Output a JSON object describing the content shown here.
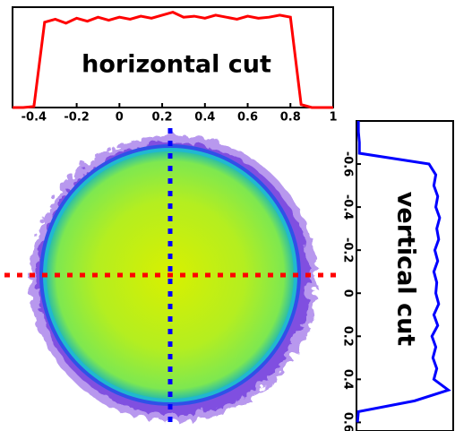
{
  "chart_data": [
    {
      "type": "line",
      "orientation": "horizontal",
      "title": "horizontal cut",
      "color": "#ff0000",
      "x": [
        -0.5,
        -0.45,
        -0.4,
        -0.35,
        -0.3,
        -0.25,
        -0.2,
        -0.15,
        -0.1,
        -0.05,
        0,
        0.05,
        0.1,
        0.15,
        0.2,
        0.25,
        0.3,
        0.35,
        0.4,
        0.45,
        0.5,
        0.55,
        0.6,
        0.65,
        0.7,
        0.75,
        0.8,
        0.85,
        0.9,
        0.95,
        1
      ],
      "values": [
        0,
        0,
        0.01,
        0.85,
        0.88,
        0.84,
        0.89,
        0.86,
        0.9,
        0.87,
        0.9,
        0.88,
        0.91,
        0.89,
        0.92,
        0.95,
        0.9,
        0.91,
        0.89,
        0.92,
        0.9,
        0.88,
        0.91,
        0.89,
        0.9,
        0.92,
        0.9,
        0.03,
        0,
        0,
        0
      ],
      "xlim": [
        -0.5,
        1
      ],
      "xticks": [
        -0.4,
        -0.2,
        0,
        0.2,
        0.4,
        0.6,
        0.8,
        1
      ],
      "ylim": [
        0,
        1
      ]
    },
    {
      "type": "line",
      "orientation": "vertical",
      "title": "vertical cut",
      "color": "#0000ff",
      "x": [
        -0.8,
        -0.75,
        -0.7,
        -0.65,
        -0.6,
        -0.55,
        -0.5,
        -0.45,
        -0.4,
        -0.35,
        -0.3,
        -0.25,
        -0.2,
        -0.15,
        -0.1,
        -0.05,
        0,
        0.05,
        0.1,
        0.15,
        0.2,
        0.25,
        0.3,
        0.35,
        0.4,
        0.45,
        0.5,
        0.55,
        0.6
      ],
      "values": [
        0.02,
        0.02,
        0.03,
        0.03,
        0.75,
        0.82,
        0.8,
        0.84,
        0.82,
        0.86,
        0.83,
        0.85,
        0.81,
        0.84,
        0.8,
        0.83,
        0.82,
        0.85,
        0.8,
        0.84,
        0.78,
        0.82,
        0.79,
        0.83,
        0.8,
        0.95,
        0.6,
        0.02,
        0.01
      ],
      "xlim": [
        -0.8,
        0.64
      ],
      "xticks": [
        -0.6,
        -0.4,
        -0.2,
        0,
        0.2,
        0.4,
        0.6
      ],
      "ylim": [
        0,
        1
      ]
    }
  ]
}
